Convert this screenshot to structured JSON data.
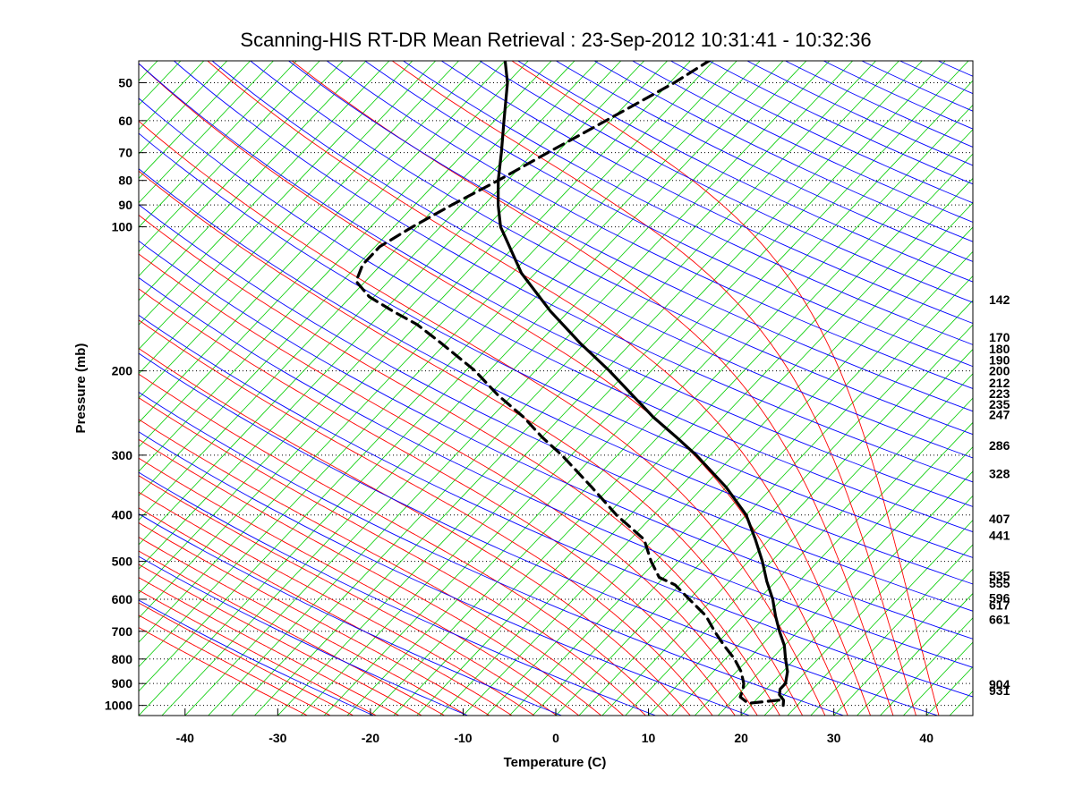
{
  "chart_data": {
    "type": "line",
    "title": "Scanning-HIS RT-DR Mean Retrieval : 23-Sep-2012 10:31:41 - 10:32:36",
    "xlabel": "Temperature (C)",
    "ylabel": "Pressure (mb)",
    "xlim": [
      -45,
      45
    ],
    "ylim": [
      1050,
      45
    ],
    "yscale": "log",
    "skew_degrees_per_decade": 49,
    "x_ticks": [
      "-40",
      "-30",
      "-20",
      "-10",
      "0",
      "10",
      "20",
      "30",
      "40"
    ],
    "y_ticks": [
      "50",
      "60",
      "70",
      "80",
      "90",
      "100",
      "200",
      "300",
      "400",
      "500",
      "600",
      "700",
      "800",
      "900",
      "1000"
    ],
    "grid": {
      "horizontal_dotted": true
    },
    "colors": {
      "isotherm": "#00cc00",
      "dry_adiabat": "#0000ff",
      "moist_adiabat": "#ff0000",
      "profile": "#000000"
    },
    "right_labels": [
      "142",
      "170",
      "180",
      "190",
      "200",
      "212",
      "223",
      "235",
      "247",
      "286",
      "328",
      "407",
      "441",
      "535",
      "555",
      "596",
      "617",
      "661",
      "904",
      "931"
    ],
    "right_label_pressures": [
      142,
      170,
      180,
      190,
      200,
      212,
      223,
      235,
      247,
      286,
      328,
      407,
      441,
      535,
      555,
      596,
      617,
      661,
      904,
      931
    ],
    "series": [
      {
        "style": "solid",
        "points": [
          {
            "p": 1000,
            "t": 23.5
          },
          {
            "p": 975,
            "t": 23.0
          },
          {
            "p": 950,
            "t": 22.0
          },
          {
            "p": 925,
            "t": 21.5
          },
          {
            "p": 900,
            "t": 21.5
          },
          {
            "p": 850,
            "t": 20.5
          },
          {
            "p": 800,
            "t": 19.0
          },
          {
            "p": 750,
            "t": 17.5
          },
          {
            "p": 700,
            "t": 15.5
          },
          {
            "p": 650,
            "t": 13.5
          },
          {
            "p": 600,
            "t": 11.5
          },
          {
            "p": 550,
            "t": 9.0
          },
          {
            "p": 500,
            "t": 6.5
          },
          {
            "p": 450,
            "t": 3.5
          },
          {
            "p": 400,
            "t": 0.0
          },
          {
            "p": 350,
            "t": -5.0
          },
          {
            "p": 300,
            "t": -11.5
          },
          {
            "p": 275,
            "t": -15.5
          },
          {
            "p": 250,
            "t": -20.0
          },
          {
            "p": 225,
            "t": -24.5
          },
          {
            "p": 200,
            "t": -29.5
          },
          {
            "p": 175,
            "t": -35.5
          },
          {
            "p": 150,
            "t": -42.0
          },
          {
            "p": 125,
            "t": -49.0
          },
          {
            "p": 100,
            "t": -56.0
          },
          {
            "p": 90,
            "t": -58.5
          },
          {
            "p": 80,
            "t": -61.0
          },
          {
            "p": 70,
            "t": -63.5
          },
          {
            "p": 60,
            "t": -66.5
          },
          {
            "p": 50,
            "t": -70.0
          },
          {
            "p": 45,
            "t": -72.5
          }
        ]
      },
      {
        "style": "dashed",
        "points": [
          {
            "p": 975,
            "t": 22.5
          },
          {
            "p": 990,
            "t": 19.5
          },
          {
            "p": 960,
            "t": 18.0
          },
          {
            "p": 925,
            "t": 17.5
          },
          {
            "p": 900,
            "t": 17.0
          },
          {
            "p": 850,
            "t": 15.5
          },
          {
            "p": 800,
            "t": 13.5
          },
          {
            "p": 750,
            "t": 11.0
          },
          {
            "p": 700,
            "t": 8.5
          },
          {
            "p": 650,
            "t": 6.0
          },
          {
            "p": 600,
            "t": 2.5
          },
          {
            "p": 560,
            "t": -0.5
          },
          {
            "p": 540,
            "t": -3.0
          },
          {
            "p": 500,
            "t": -5.5
          },
          {
            "p": 450,
            "t": -8.5
          },
          {
            "p": 400,
            "t": -14.0
          },
          {
            "p": 350,
            "t": -19.5
          },
          {
            "p": 300,
            "t": -26.0
          },
          {
            "p": 275,
            "t": -30.0
          },
          {
            "p": 250,
            "t": -34.0
          },
          {
            "p": 225,
            "t": -39.0
          },
          {
            "p": 200,
            "t": -44.0
          },
          {
            "p": 175,
            "t": -50.5
          },
          {
            "p": 160,
            "t": -55.0
          },
          {
            "p": 150,
            "t": -59.0
          },
          {
            "p": 140,
            "t": -63.0
          },
          {
            "p": 130,
            "t": -66.0
          },
          {
            "p": 120,
            "t": -67.0
          },
          {
            "p": 110,
            "t": -67.0
          },
          {
            "p": 100,
            "t": -65.5
          },
          {
            "p": 90,
            "t": -63.5
          },
          {
            "p": 80,
            "t": -61.0
          },
          {
            "p": 70,
            "t": -58.5
          },
          {
            "p": 60,
            "t": -55.5
          },
          {
            "p": 50,
            "t": -52.0
          },
          {
            "p": 45,
            "t": -50.5
          }
        ]
      }
    ]
  }
}
